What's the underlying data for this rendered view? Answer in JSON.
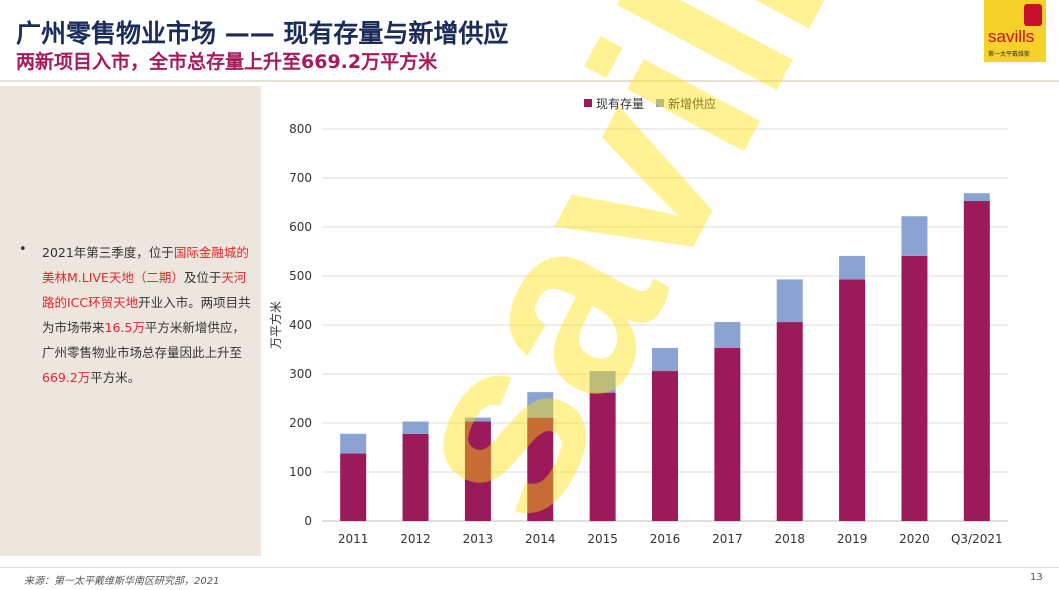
{
  "header": {
    "title": "广州零售物业市场 —— 现有存量与新增供应",
    "subtitle": "两新项目入市，全市总存量上升至669.2万平方米"
  },
  "logo": {
    "word": "savills",
    "sub": "第一太平戴维斯"
  },
  "watermark": "savills",
  "side_text": {
    "bullet": "•",
    "segments": [
      {
        "text": "2021年第三季度，位于",
        "hl": false
      },
      {
        "text": "国际金融城的美林M.LIVE天地（二期）",
        "hl": true
      },
      {
        "text": "及位于",
        "hl": false
      },
      {
        "text": "天河路的ICC环贸天地",
        "hl": true
      },
      {
        "text": "开业入市。两项目共为市场带来",
        "hl": false
      },
      {
        "text": "16.5万",
        "hl": true
      },
      {
        "text": "平方米新增供应，广州零售物业市场总存量因此上升至",
        "hl": false
      },
      {
        "text": "669.2万",
        "hl": true
      },
      {
        "text": "平方米。",
        "hl": false
      }
    ]
  },
  "chart_data": {
    "type": "bar",
    "stacked": true,
    "categories": [
      "2011",
      "2012",
      "2013",
      "2014",
      "2015",
      "2016",
      "2017",
      "2018",
      "2019",
      "2020",
      "Q3/2021"
    ],
    "series": [
      {
        "name": "现有存量",
        "color": "#9b1b5a",
        "values": [
          138,
          178,
          203,
          211,
          262,
          306,
          353,
          406,
          493,
          541,
          653
        ]
      },
      {
        "name": "新增供应",
        "color": "#8aa3d3",
        "values": [
          40,
          25,
          8,
          52,
          44,
          47,
          53,
          87,
          48,
          81,
          16
        ]
      }
    ],
    "ylabel": "万平方米",
    "ylim": [
      0,
      800
    ],
    "yticks": [
      0,
      100,
      200,
      300,
      400,
      500,
      600,
      700,
      800
    ],
    "grid": true,
    "legend": "top-center"
  },
  "footer": {
    "source": "来源：第一太平戴维斯华南区研究部，2021",
    "page": "13"
  }
}
